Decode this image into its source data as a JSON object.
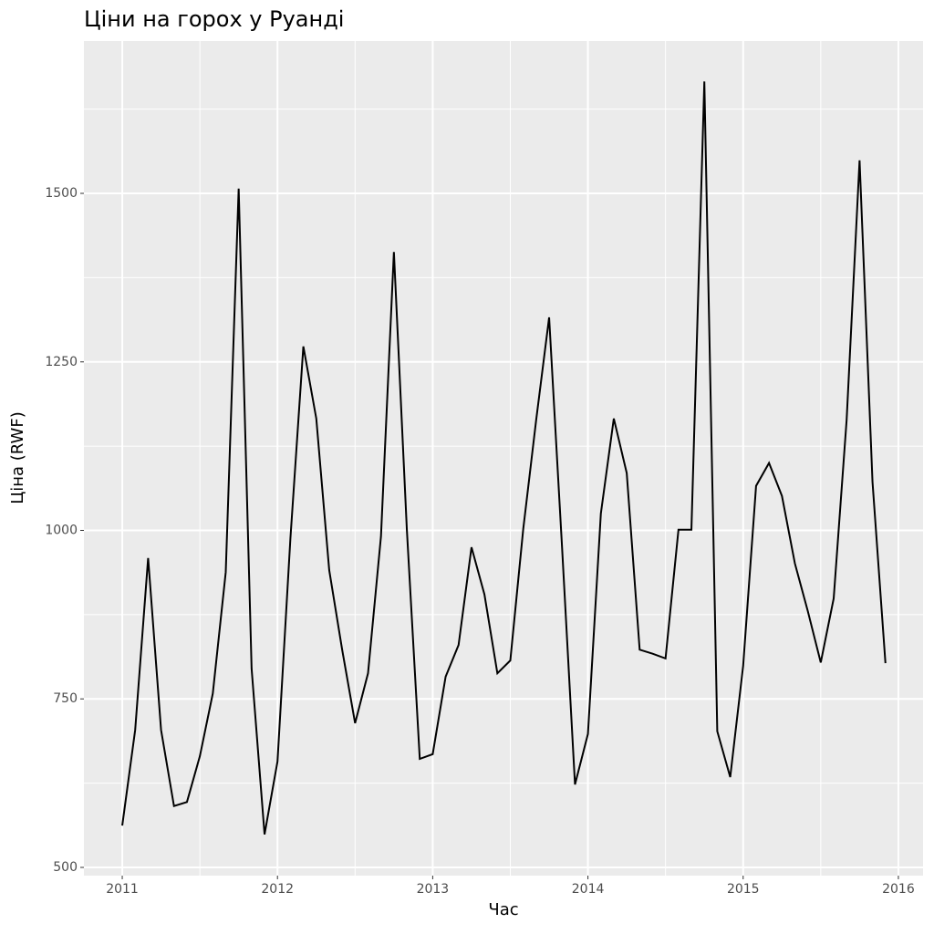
{
  "chart_data": {
    "type": "line",
    "title": "Ціни на горох у Руанді",
    "x_label": "Час",
    "y_label": "Ціна (RWF)",
    "x": [
      2011,
      2011.0833,
      2011.1667,
      2011.25,
      2011.3333,
      2011.4167,
      2011.5,
      2011.5833,
      2011.6667,
      2011.75,
      2011.8333,
      2011.9167,
      2012,
      2012.0833,
      2012.1667,
      2012.25,
      2012.3333,
      2012.4167,
      2012.5,
      2012.5833,
      2012.6667,
      2012.75,
      2012.8333,
      2012.9167,
      2013,
      2013.0833,
      2013.1667,
      2013.25,
      2013.3333,
      2013.4167,
      2013.5,
      2013.5833,
      2013.6667,
      2013.75,
      2013.8333,
      2013.9167,
      2014,
      2014.0833,
      2014.1667,
      2014.25,
      2014.3333,
      2014.4167,
      2014.5,
      2014.5833,
      2014.6667,
      2014.75,
      2014.8333,
      2014.9167,
      2015,
      2015.0833,
      2015.1667,
      2015.25,
      2015.3333,
      2015.4167,
      2015.5,
      2015.5833,
      2015.6667,
      2015.75,
      2015.8333,
      2015.9167
    ],
    "series": [
      {
        "name": "Ціна",
        "color": "#000000",
        "values": [
          562,
          704,
          959,
          704,
          591,
          597,
          665,
          758,
          938,
          1507,
          795,
          549,
          657,
          988,
          1273,
          1166,
          941,
          823,
          714,
          788,
          991,
          1413,
          1002,
          661,
          668,
          783,
          830,
          975,
          905,
          788,
          807,
          1002,
          1164,
          1316,
          975,
          623,
          698,
          1025,
          1166,
          1085,
          823,
          817,
          810,
          1001,
          1001,
          1666,
          702,
          634,
          799,
          1066,
          1100,
          1051,
          951,
          880,
          804,
          899,
          1164,
          1549,
          1072,
          803
        ]
      }
    ],
    "xlim": [
      2010.753,
      2016.159
    ],
    "xticks": [
      2011,
      2012,
      2013,
      2014,
      2015,
      2016
    ],
    "ylim": [
      487.8,
      1726
    ],
    "yticks": [
      500,
      750,
      1000,
      1250,
      1500
    ],
    "grid": true
  }
}
